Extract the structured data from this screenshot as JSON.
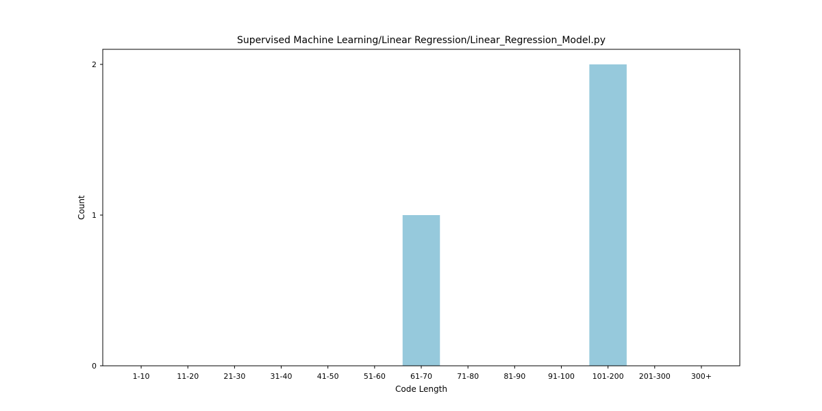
{
  "chart_data": {
    "type": "bar",
    "title": "Supervised Machine Learning/Linear Regression/Linear_Regression_Model.py",
    "xlabel": "Code Length",
    "ylabel": "Count",
    "categories": [
      "1-10",
      "11-20",
      "21-30",
      "31-40",
      "41-50",
      "51-60",
      "61-70",
      "71-80",
      "81-90",
      "91-100",
      "101-200",
      "201-300",
      "300+"
    ],
    "values": [
      0,
      0,
      0,
      0,
      0,
      0,
      1,
      0,
      0,
      0,
      2,
      0,
      0
    ],
    "ylim": [
      0,
      2.1
    ],
    "yticks": [
      "0",
      "1",
      "2"
    ],
    "bar_color": "#96c9dc",
    "grid": false,
    "legend": "none"
  }
}
